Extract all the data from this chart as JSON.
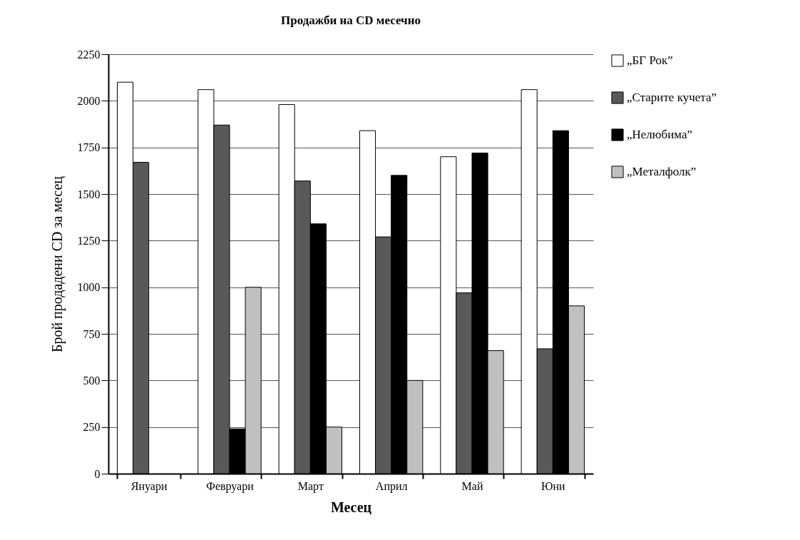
{
  "chart_data": {
    "type": "bar",
    "title": "Продажби на CD месечно",
    "xlabel": "Месец",
    "ylabel": "Брой  продадени CD за месец",
    "categories": [
      "Януари",
      "Февруари",
      "Март",
      "Април",
      "Май",
      "Юни"
    ],
    "series": [
      {
        "name": "„БГ Рок”",
        "color": "#ffffff",
        "values": [
          2100,
          2060,
          1980,
          1840,
          1700,
          2060
        ]
      },
      {
        "name": "„Старите кучета”",
        "color": "#595959",
        "values": [
          1670,
          1870,
          1570,
          1270,
          970,
          670
        ]
      },
      {
        "name": "„Нелюбима”",
        "color": "#000000",
        "values": [
          null,
          240,
          1340,
          1600,
          1720,
          1840
        ]
      },
      {
        "name": "„Металфолк”",
        "color": "#c0c0c0",
        "values": [
          null,
          1000,
          250,
          500,
          660,
          900
        ]
      }
    ],
    "ylim": [
      0,
      2250
    ],
    "yticks": [
      0,
      250,
      500,
      750,
      1000,
      1250,
      1500,
      1750,
      2000,
      2250
    ],
    "grid": "y",
    "legend": "top right"
  }
}
